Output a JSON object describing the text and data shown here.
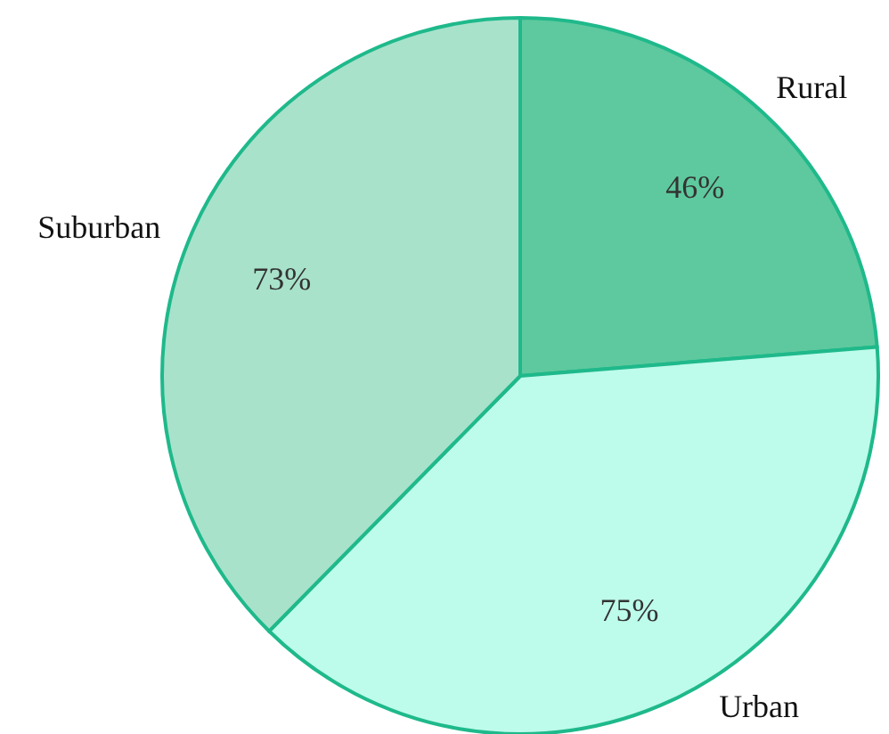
{
  "chart_data": {
    "type": "pie",
    "categories": [
      "Rural",
      "Urban",
      "Suburban"
    ],
    "values": [
      46,
      75,
      73
    ],
    "value_labels": [
      "46%",
      "75%",
      "73%"
    ],
    "colors": [
      "#5ec99e",
      "#bdfbea",
      "#a8e2cb"
    ]
  }
}
